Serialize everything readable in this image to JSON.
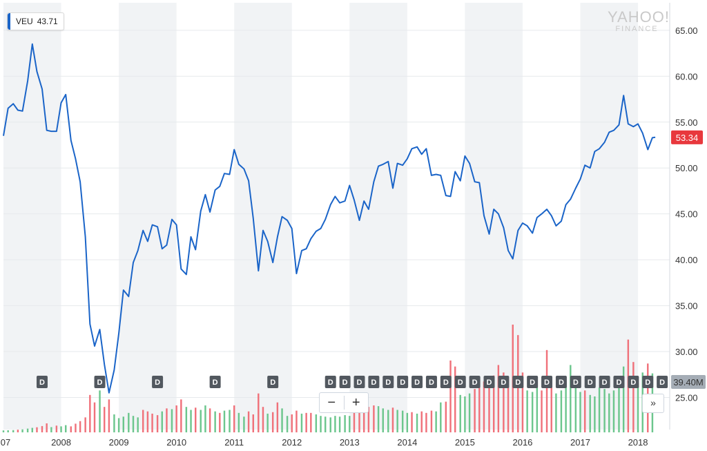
{
  "watermark": {
    "line1": "YAHOO!",
    "line2": "FINANCE"
  },
  "legend": {
    "symbol": "VEU",
    "value": "43.71",
    "color": "#1a64c8"
  },
  "last_price_badge": {
    "value": "53.34",
    "color": "#e8383d"
  },
  "volume_badge": {
    "value": "39.40M",
    "color": "#a5adb6"
  },
  "controls": {
    "zoom_out": "−",
    "zoom_in": "+",
    "next": "»"
  },
  "dividend_marker_label": "D",
  "chart_data": {
    "type": "line",
    "title": "",
    "xlabel": "",
    "ylabel": "",
    "ylim": [
      21.5,
      68
    ],
    "xlim": [
      2007.0,
      2018.55
    ],
    "yticks": [
      "25.00",
      "30.00",
      "35.00",
      "40.00",
      "45.00",
      "50.00",
      "55.00",
      "60.00",
      "65.00"
    ],
    "xticks": [
      "07",
      "2008",
      "2009",
      "2010",
      "2011",
      "2012",
      "2013",
      "2014",
      "2015",
      "2016",
      "2017",
      "2018"
    ],
    "grid": true,
    "legend_position": "top-left",
    "series": [
      {
        "name": "VEU",
        "color": "#1a64c8",
        "points": [
          [
            2007.0,
            53.5
          ],
          [
            2007.08,
            56.5
          ],
          [
            2007.17,
            57.0
          ],
          [
            2007.25,
            56.3
          ],
          [
            2007.33,
            56.2
          ],
          [
            2007.42,
            59.5
          ],
          [
            2007.5,
            63.5
          ],
          [
            2007.58,
            60.5
          ],
          [
            2007.67,
            58.6
          ],
          [
            2007.75,
            54.1
          ],
          [
            2007.83,
            54.0
          ],
          [
            2007.92,
            54.0
          ],
          [
            2008.0,
            57.1
          ],
          [
            2008.08,
            58.0
          ],
          [
            2008.17,
            53.0
          ],
          [
            2008.25,
            51.0
          ],
          [
            2008.33,
            48.5
          ],
          [
            2008.42,
            42.5
          ],
          [
            2008.5,
            33.0
          ],
          [
            2008.58,
            30.6
          ],
          [
            2008.67,
            32.4
          ],
          [
            2008.75,
            28.6
          ],
          [
            2008.83,
            25.5
          ],
          [
            2008.92,
            28.0
          ],
          [
            2009.0,
            32.0
          ],
          [
            2009.08,
            36.7
          ],
          [
            2009.17,
            36.0
          ],
          [
            2009.25,
            39.7
          ],
          [
            2009.33,
            41.0
          ],
          [
            2009.42,
            43.2
          ],
          [
            2009.5,
            42.0
          ],
          [
            2009.58,
            43.8
          ],
          [
            2009.67,
            43.6
          ],
          [
            2009.75,
            41.2
          ],
          [
            2009.83,
            41.6
          ],
          [
            2009.92,
            44.4
          ],
          [
            2010.0,
            43.8
          ],
          [
            2010.08,
            39.0
          ],
          [
            2010.17,
            38.4
          ],
          [
            2010.25,
            42.5
          ],
          [
            2010.33,
            41.1
          ],
          [
            2010.42,
            45.3
          ],
          [
            2010.5,
            47.1
          ],
          [
            2010.58,
            45.2
          ],
          [
            2010.67,
            47.6
          ],
          [
            2010.75,
            48.0
          ],
          [
            2010.83,
            49.4
          ],
          [
            2010.92,
            49.3
          ],
          [
            2011.0,
            52.0
          ],
          [
            2011.08,
            50.4
          ],
          [
            2011.17,
            49.9
          ],
          [
            2011.25,
            48.6
          ],
          [
            2011.33,
            44.5
          ],
          [
            2011.42,
            38.8
          ],
          [
            2011.5,
            43.2
          ],
          [
            2011.58,
            42.0
          ],
          [
            2011.67,
            39.7
          ],
          [
            2011.75,
            42.5
          ],
          [
            2011.83,
            44.7
          ],
          [
            2011.92,
            44.3
          ],
          [
            2012.0,
            43.4
          ],
          [
            2012.08,
            38.5
          ],
          [
            2012.17,
            41.0
          ],
          [
            2012.25,
            41.2
          ],
          [
            2012.33,
            42.3
          ],
          [
            2012.42,
            43.1
          ],
          [
            2012.5,
            43.4
          ],
          [
            2012.58,
            44.4
          ],
          [
            2012.67,
            46.0
          ],
          [
            2012.75,
            46.9
          ],
          [
            2012.83,
            46.2
          ],
          [
            2012.92,
            46.4
          ],
          [
            2013.0,
            48.1
          ],
          [
            2013.08,
            46.5
          ],
          [
            2013.17,
            44.3
          ],
          [
            2013.25,
            46.4
          ],
          [
            2013.33,
            45.5
          ],
          [
            2013.42,
            48.5
          ],
          [
            2013.5,
            50.2
          ],
          [
            2013.58,
            50.4
          ],
          [
            2013.67,
            50.7
          ],
          [
            2013.75,
            47.8
          ],
          [
            2013.83,
            50.5
          ],
          [
            2013.92,
            50.3
          ],
          [
            2014.0,
            51.0
          ],
          [
            2014.08,
            52.1
          ],
          [
            2014.17,
            52.3
          ],
          [
            2014.25,
            51.5
          ],
          [
            2014.33,
            52.1
          ],
          [
            2014.42,
            49.2
          ],
          [
            2014.5,
            49.3
          ],
          [
            2014.58,
            49.2
          ],
          [
            2014.67,
            47.0
          ],
          [
            2014.75,
            46.9
          ],
          [
            2014.83,
            49.6
          ],
          [
            2014.92,
            48.6
          ],
          [
            2015.0,
            51.3
          ],
          [
            2015.08,
            50.5
          ],
          [
            2015.17,
            48.5
          ],
          [
            2015.25,
            48.4
          ],
          [
            2015.33,
            44.8
          ],
          [
            2015.42,
            42.8
          ],
          [
            2015.5,
            45.5
          ],
          [
            2015.58,
            45.0
          ],
          [
            2015.67,
            43.5
          ],
          [
            2015.75,
            41.0
          ],
          [
            2015.83,
            40.1
          ],
          [
            2015.92,
            43.2
          ],
          [
            2016.0,
            44.0
          ],
          [
            2016.08,
            43.7
          ],
          [
            2016.17,
            42.9
          ],
          [
            2016.25,
            44.6
          ],
          [
            2016.33,
            45.0
          ],
          [
            2016.42,
            45.5
          ],
          [
            2016.5,
            44.8
          ],
          [
            2016.58,
            43.7
          ],
          [
            2016.67,
            44.2
          ],
          [
            2016.75,
            46.0
          ],
          [
            2016.83,
            46.6
          ],
          [
            2016.92,
            47.8
          ],
          [
            2017.0,
            48.8
          ],
          [
            2017.08,
            50.3
          ],
          [
            2017.17,
            50.0
          ],
          [
            2017.25,
            51.8
          ],
          [
            2017.33,
            52.1
          ],
          [
            2017.42,
            52.8
          ],
          [
            2017.5,
            53.9
          ],
          [
            2017.58,
            54.1
          ],
          [
            2017.67,
            54.7
          ],
          [
            2017.75,
            57.9
          ],
          [
            2017.83,
            54.8
          ],
          [
            2017.92,
            54.5
          ],
          [
            2018.0,
            54.8
          ],
          [
            2018.08,
            53.8
          ],
          [
            2018.17,
            52.0
          ],
          [
            2018.25,
            53.3
          ],
          [
            2018.3,
            53.34
          ]
        ]
      }
    ],
    "volume": {
      "unit": "M",
      "last": 39.4,
      "bars": [
        [
          2007.0,
          1.3,
          "g"
        ],
        [
          2007.08,
          1.4,
          "g"
        ],
        [
          2007.17,
          1.5,
          "g"
        ],
        [
          2007.25,
          1.8,
          "r"
        ],
        [
          2007.33,
          2.0,
          "g"
        ],
        [
          2007.42,
          2.5,
          "g"
        ],
        [
          2007.5,
          3.0,
          "g"
        ],
        [
          2007.58,
          3.4,
          "r"
        ],
        [
          2007.67,
          4.2,
          "r"
        ],
        [
          2007.75,
          6.0,
          "r"
        ],
        [
          2007.83,
          3.5,
          "g"
        ],
        [
          2007.92,
          4.5,
          "r"
        ],
        [
          2008.0,
          4.0,
          "g"
        ],
        [
          2008.08,
          4.8,
          "g"
        ],
        [
          2008.17,
          4.0,
          "r"
        ],
        [
          2008.25,
          5.8,
          "r"
        ],
        [
          2008.33,
          7.5,
          "r"
        ],
        [
          2008.42,
          10.0,
          "r"
        ],
        [
          2008.5,
          25.0,
          "r"
        ],
        [
          2008.58,
          20.0,
          "r"
        ],
        [
          2008.67,
          28.0,
          "g"
        ],
        [
          2008.75,
          17.0,
          "r"
        ],
        [
          2008.83,
          22.0,
          "r"
        ],
        [
          2008.92,
          12.0,
          "g"
        ],
        [
          2009.0,
          9.5,
          "g"
        ],
        [
          2009.08,
          10.5,
          "g"
        ],
        [
          2009.17,
          13.0,
          "g"
        ],
        [
          2009.25,
          11.0,
          "g"
        ],
        [
          2009.33,
          10.0,
          "g"
        ],
        [
          2009.42,
          15.0,
          "r"
        ],
        [
          2009.5,
          14.0,
          "r"
        ],
        [
          2009.58,
          12.5,
          "r"
        ],
        [
          2009.67,
          11.5,
          "r"
        ],
        [
          2009.75,
          14.0,
          "g"
        ],
        [
          2009.83,
          16.0,
          "r"
        ],
        [
          2009.92,
          15.5,
          "g"
        ],
        [
          2010.0,
          18.0,
          "r"
        ],
        [
          2010.08,
          22.0,
          "r"
        ],
        [
          2010.17,
          17.0,
          "g"
        ],
        [
          2010.25,
          15.0,
          "g"
        ],
        [
          2010.33,
          16.5,
          "r"
        ],
        [
          2010.42,
          15.0,
          "g"
        ],
        [
          2010.5,
          18.0,
          "g"
        ],
        [
          2010.58,
          16.0,
          "r"
        ],
        [
          2010.67,
          14.0,
          "g"
        ],
        [
          2010.75,
          13.0,
          "r"
        ],
        [
          2010.83,
          14.5,
          "g"
        ],
        [
          2010.92,
          15.0,
          "g"
        ],
        [
          2011.0,
          18.0,
          "r"
        ],
        [
          2011.08,
          13.0,
          "g"
        ],
        [
          2011.17,
          10.5,
          "g"
        ],
        [
          2011.25,
          14.0,
          "r"
        ],
        [
          2011.33,
          12.0,
          "r"
        ],
        [
          2011.42,
          26.0,
          "r"
        ],
        [
          2011.5,
          17.0,
          "r"
        ],
        [
          2011.58,
          12.5,
          "g"
        ],
        [
          2011.67,
          13.5,
          "r"
        ],
        [
          2011.75,
          20.0,
          "r"
        ],
        [
          2011.83,
          16.0,
          "g"
        ],
        [
          2011.92,
          11.0,
          "g"
        ],
        [
          2012.0,
          12.0,
          "r"
        ],
        [
          2012.08,
          14.5,
          "r"
        ],
        [
          2012.17,
          12.5,
          "g"
        ],
        [
          2012.25,
          13.0,
          "r"
        ],
        [
          2012.33,
          13.0,
          "r"
        ],
        [
          2012.42,
          12.0,
          "g"
        ],
        [
          2012.5,
          11.0,
          "g"
        ],
        [
          2012.58,
          10.5,
          "g"
        ],
        [
          2012.67,
          10.0,
          "g"
        ],
        [
          2012.75,
          11.0,
          "g"
        ],
        [
          2012.83,
          10.5,
          "g"
        ],
        [
          2012.92,
          11.5,
          "g"
        ],
        [
          2013.0,
          11.0,
          "g"
        ],
        [
          2013.08,
          13.0,
          "r"
        ],
        [
          2013.17,
          15.0,
          "r"
        ],
        [
          2013.25,
          16.5,
          "r"
        ],
        [
          2013.33,
          17.0,
          "r"
        ],
        [
          2013.42,
          18.0,
          "r"
        ],
        [
          2013.5,
          17.5,
          "g"
        ],
        [
          2013.58,
          16.0,
          "g"
        ],
        [
          2013.67,
          15.0,
          "g"
        ],
        [
          2013.75,
          16.5,
          "r"
        ],
        [
          2013.83,
          15.0,
          "g"
        ],
        [
          2013.92,
          14.5,
          "g"
        ],
        [
          2014.0,
          13.0,
          "g"
        ],
        [
          2014.08,
          13.5,
          "r"
        ],
        [
          2014.17,
          12.5,
          "g"
        ],
        [
          2014.25,
          14.0,
          "r"
        ],
        [
          2014.33,
          13.0,
          "r"
        ],
        [
          2014.42,
          14.5,
          "r"
        ],
        [
          2014.5,
          14.0,
          "g"
        ],
        [
          2014.58,
          20.0,
          "g"
        ],
        [
          2014.67,
          20.5,
          "r"
        ],
        [
          2014.75,
          48.0,
          "r"
        ],
        [
          2014.83,
          44.0,
          "r"
        ],
        [
          2014.92,
          25.0,
          "g"
        ],
        [
          2015.0,
          24.0,
          "g"
        ],
        [
          2015.08,
          26.0,
          "g"
        ],
        [
          2015.17,
          29.0,
          "r"
        ],
        [
          2015.25,
          32.0,
          "r"
        ],
        [
          2015.33,
          34.0,
          "r"
        ],
        [
          2015.42,
          36.0,
          "r"
        ],
        [
          2015.5,
          38.0,
          "r"
        ],
        [
          2015.58,
          45.0,
          "r"
        ],
        [
          2015.67,
          40.0,
          "r"
        ],
        [
          2015.75,
          36.0,
          "r"
        ],
        [
          2015.83,
          72.0,
          "r"
        ],
        [
          2015.92,
          65.0,
          "r"
        ],
        [
          2016.0,
          40.0,
          "r"
        ],
        [
          2016.08,
          28.0,
          "g"
        ],
        [
          2016.17,
          27.0,
          "g"
        ],
        [
          2016.25,
          30.0,
          "g"
        ],
        [
          2016.33,
          28.0,
          "r"
        ],
        [
          2016.42,
          55.0,
          "r"
        ],
        [
          2016.5,
          32.0,
          "r"
        ],
        [
          2016.58,
          26.0,
          "g"
        ],
        [
          2016.67,
          28.0,
          "g"
        ],
        [
          2016.75,
          34.0,
          "g"
        ],
        [
          2016.83,
          45.0,
          "g"
        ],
        [
          2016.92,
          30.0,
          "g"
        ],
        [
          2017.0,
          27.0,
          "g"
        ],
        [
          2017.08,
          28.0,
          "r"
        ],
        [
          2017.17,
          25.0,
          "g"
        ],
        [
          2017.25,
          24.0,
          "g"
        ],
        [
          2017.33,
          30.0,
          "g"
        ],
        [
          2017.42,
          29.0,
          "g"
        ],
        [
          2017.5,
          26.0,
          "g"
        ],
        [
          2017.58,
          28.0,
          "g"
        ],
        [
          2017.67,
          30.0,
          "g"
        ],
        [
          2017.75,
          44.0,
          "g"
        ],
        [
          2017.83,
          62.0,
          "r"
        ],
        [
          2017.92,
          47.0,
          "r"
        ],
        [
          2018.0,
          33.0,
          "g"
        ],
        [
          2018.08,
          40.0,
          "g"
        ],
        [
          2018.17,
          46.0,
          "r"
        ],
        [
          2018.25,
          39.4,
          "g"
        ]
      ]
    },
    "dividend_markers": [
      2007.67,
      2008.67,
      2009.67,
      2010.67,
      2011.67,
      2012.67,
      2012.92,
      2013.17,
      2013.42,
      2013.67,
      2013.92,
      2014.17,
      2014.42,
      2014.67,
      2014.92,
      2015.17,
      2015.42,
      2015.67,
      2015.92,
      2016.17,
      2016.42,
      2016.67,
      2016.92,
      2017.17,
      2017.42,
      2017.67,
      2017.92,
      2018.17,
      2018.42
    ]
  }
}
